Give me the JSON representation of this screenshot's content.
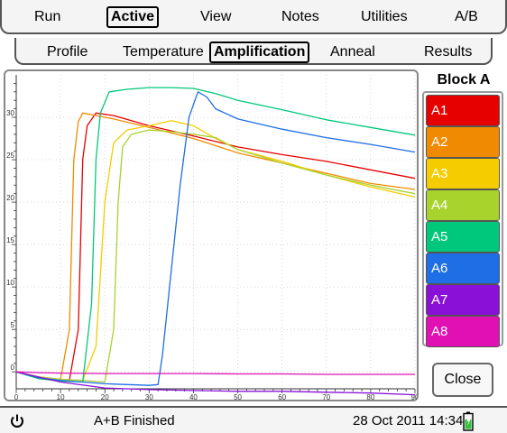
{
  "menu": [
    {
      "label": "Run",
      "active": false
    },
    {
      "label": "Active",
      "active": true
    },
    {
      "label": "View",
      "active": false
    },
    {
      "label": "Notes",
      "active": false
    },
    {
      "label": "Utilities",
      "active": false
    },
    {
      "label": "A/B",
      "active": false
    }
  ],
  "tabs": [
    {
      "label": "Profile",
      "active": false
    },
    {
      "label": "Temperature",
      "active": false
    },
    {
      "label": "Amplification",
      "active": true
    },
    {
      "label": "Anneal",
      "active": false
    },
    {
      "label": "Results",
      "active": false
    }
  ],
  "legend": {
    "title": "Block A",
    "wells": [
      {
        "label": "A1",
        "color": "#e60000"
      },
      {
        "label": "A2",
        "color": "#f08a00"
      },
      {
        "label": "A3",
        "color": "#f5cc00"
      },
      {
        "label": "A4",
        "color": "#a8d22c"
      },
      {
        "label": "A5",
        "color": "#00c87a"
      },
      {
        "label": "A6",
        "color": "#1e6ee6"
      },
      {
        "label": "A7",
        "color": "#8a10d8"
      },
      {
        "label": "A8",
        "color": "#e010b4"
      }
    ]
  },
  "close_label": "Close",
  "status": {
    "icon": "power-icon",
    "text": "A+B Finished",
    "datetime": "28 Oct 2011 14:34",
    "battery_icon": "battery-icon"
  },
  "chart_data": {
    "type": "line",
    "title": "",
    "xlabel": "",
    "ylabel": "",
    "xlim": [
      0,
      90
    ],
    "ylim": [
      -2,
      35
    ],
    "xticks": [
      0,
      10,
      20,
      30,
      40,
      50,
      60,
      70,
      80,
      90
    ],
    "yticks": [
      0,
      5,
      10,
      15,
      20,
      25,
      30
    ],
    "grid": true,
    "series": [
      {
        "well": "A1",
        "color": "#e60000",
        "points": [
          [
            0,
            0
          ],
          [
            5,
            -0.6
          ],
          [
            10,
            -0.9
          ],
          [
            12,
            -1
          ],
          [
            14,
            5
          ],
          [
            15,
            25
          ],
          [
            16,
            29
          ],
          [
            18,
            30.5
          ],
          [
            22,
            30.2
          ],
          [
            30,
            29
          ],
          [
            40,
            27.8
          ],
          [
            50,
            26.5
          ],
          [
            60,
            25.6
          ],
          [
            70,
            24.8
          ],
          [
            80,
            23.8
          ],
          [
            90,
            22.8
          ]
        ]
      },
      {
        "well": "A2",
        "color": "#f08a00",
        "points": [
          [
            0,
            0
          ],
          [
            5,
            -0.6
          ],
          [
            10,
            -0.9
          ],
          [
            12,
            5
          ],
          [
            13,
            25
          ],
          [
            14,
            29.5
          ],
          [
            15,
            30.5
          ],
          [
            18,
            30.2
          ],
          [
            22,
            29.8
          ],
          [
            30,
            28.8
          ],
          [
            40,
            27.5
          ],
          [
            50,
            25.8
          ],
          [
            60,
            24.6
          ],
          [
            70,
            23.4
          ],
          [
            80,
            22.2
          ],
          [
            90,
            21.5
          ]
        ]
      },
      {
        "well": "A3",
        "color": "#f5cc00",
        "points": [
          [
            0,
            0
          ],
          [
            5,
            -0.6
          ],
          [
            10,
            -0.9
          ],
          [
            15,
            -1
          ],
          [
            18,
            3
          ],
          [
            20,
            20
          ],
          [
            22,
            27
          ],
          [
            25,
            28.5
          ],
          [
            30,
            29
          ],
          [
            35,
            29.6
          ],
          [
            40,
            29
          ],
          [
            45,
            27.5
          ],
          [
            50,
            26.2
          ],
          [
            60,
            24.8
          ],
          [
            70,
            23.2
          ],
          [
            80,
            21.8
          ],
          [
            90,
            20.6
          ]
        ]
      },
      {
        "well": "A4",
        "color": "#a8d22c",
        "points": [
          [
            0,
            0
          ],
          [
            5,
            -0.6
          ],
          [
            10,
            -0.9
          ],
          [
            15,
            -1
          ],
          [
            20,
            -1.2
          ],
          [
            22,
            5
          ],
          [
            23,
            20
          ],
          [
            24,
            26.5
          ],
          [
            26,
            28
          ],
          [
            30,
            28.5
          ],
          [
            35,
            28.3
          ],
          [
            40,
            28
          ],
          [
            45,
            27.6
          ],
          [
            50,
            26.2
          ],
          [
            60,
            24.6
          ],
          [
            70,
            23.2
          ],
          [
            80,
            22
          ],
          [
            90,
            21
          ]
        ]
      },
      {
        "well": "A5",
        "color": "#00c87a",
        "points": [
          [
            0,
            0
          ],
          [
            5,
            -0.8
          ],
          [
            10,
            -1.1
          ],
          [
            15,
            -1.2
          ],
          [
            17,
            8
          ],
          [
            18,
            25
          ],
          [
            19,
            30.5
          ],
          [
            21,
            33
          ],
          [
            25,
            33.3
          ],
          [
            30,
            33.5
          ],
          [
            35,
            33.5
          ],
          [
            40,
            33.4
          ],
          [
            45,
            32.8
          ],
          [
            50,
            32
          ],
          [
            60,
            30.9
          ],
          [
            70,
            29.7
          ],
          [
            80,
            28.8
          ],
          [
            90,
            27.9
          ]
        ]
      },
      {
        "well": "A6",
        "color": "#1e6ee6",
        "points": [
          [
            0,
            0
          ],
          [
            5,
            -0.7
          ],
          [
            10,
            -1
          ],
          [
            20,
            -1.4
          ],
          [
            30,
            -1.6
          ],
          [
            32,
            -1.5
          ],
          [
            33,
            2
          ],
          [
            35,
            12
          ],
          [
            37,
            22
          ],
          [
            39,
            30
          ],
          [
            41,
            33
          ],
          [
            43,
            32.4
          ],
          [
            45,
            31
          ],
          [
            50,
            29.8
          ],
          [
            60,
            28.6
          ],
          [
            70,
            27.6
          ],
          [
            80,
            26.8
          ],
          [
            90,
            25.9
          ]
        ]
      },
      {
        "well": "A7",
        "color": "#8a10d8",
        "points": [
          [
            0,
            0
          ],
          [
            10,
            -1.2
          ],
          [
            20,
            -1.9
          ],
          [
            30,
            -2.1
          ],
          [
            40,
            -2.2
          ],
          [
            50,
            -2.3
          ],
          [
            60,
            -2.3
          ],
          [
            70,
            -2.4
          ],
          [
            80,
            -2.5
          ],
          [
            90,
            -2.7
          ]
        ]
      },
      {
        "well": "A8",
        "color": "#e010b4",
        "points": [
          [
            0,
            0
          ],
          [
            5,
            -0.1
          ],
          [
            10,
            -0.15
          ],
          [
            20,
            -0.2
          ],
          [
            30,
            -0.2
          ],
          [
            40,
            -0.2
          ],
          [
            50,
            -0.25
          ],
          [
            60,
            -0.25
          ],
          [
            70,
            -0.3
          ],
          [
            80,
            -0.3
          ],
          [
            90,
            -0.3
          ]
        ]
      }
    ]
  }
}
